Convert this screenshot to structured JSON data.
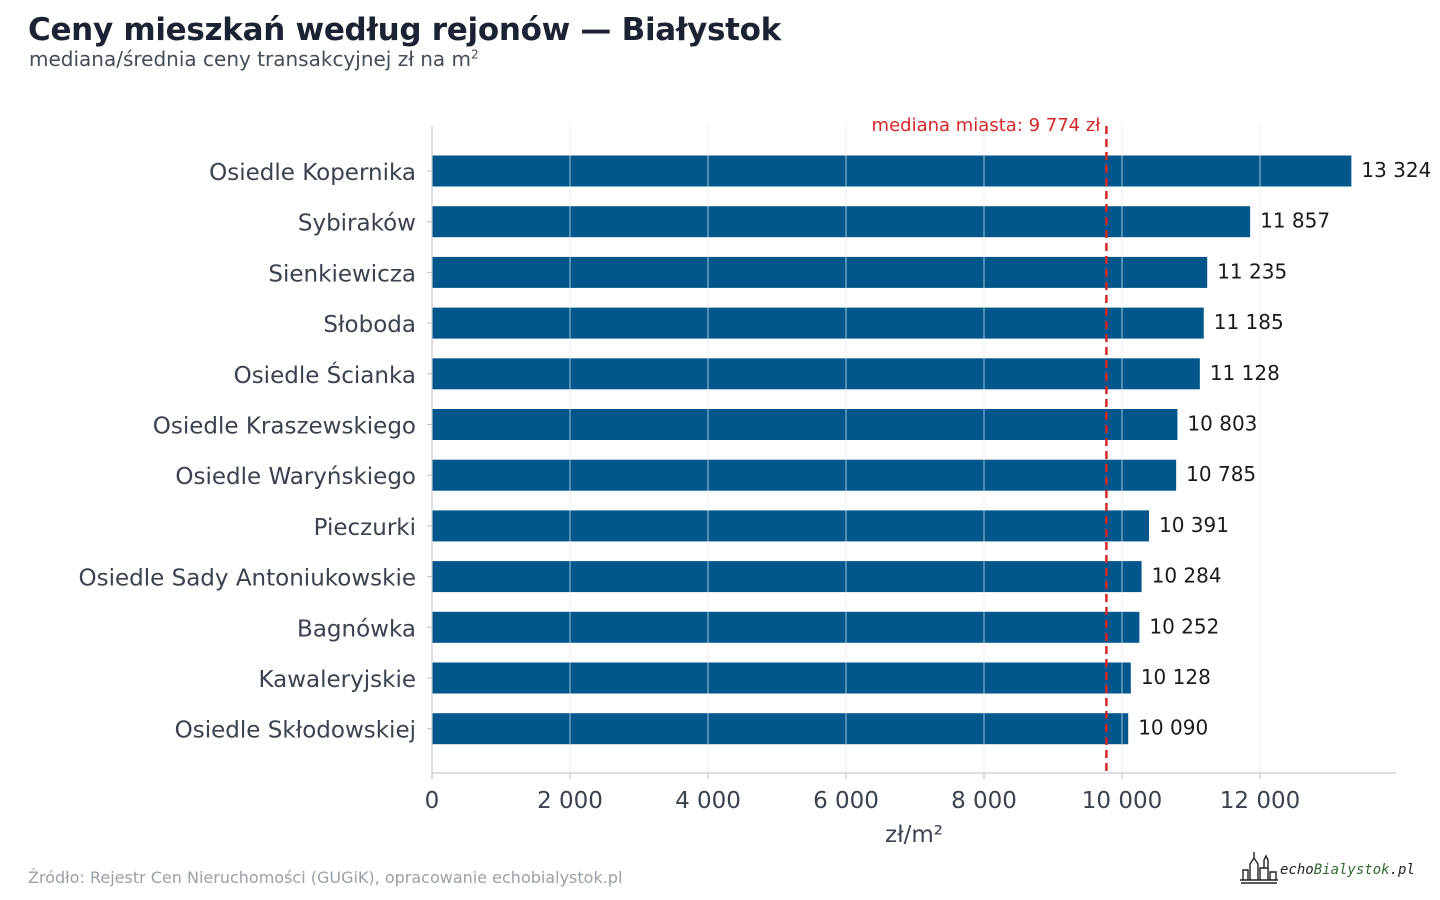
{
  "title": "Ceny mieszkań według rejonów — Białystok",
  "subtitle_text": "mediana/średnia ceny transakcyjnej zł na m",
  "subtitle_sup": "2",
  "source": "Źródło: Rejestr Cen Nieruchomości (GUGiK), opracowanie echobialystok.pl",
  "logo": {
    "prefix": "echo",
    "accent": "Bialystok",
    "suffix": ".pl"
  },
  "chart_data": {
    "type": "bar",
    "orientation": "horizontal",
    "categories": [
      "Osiedle Kopernika",
      "Sybiraków",
      "Sienkiewicza",
      "Słoboda",
      "Osiedle Ścianka",
      "Osiedle Kraszewskiego",
      "Osiedle Waryńskiego",
      "Pieczurki",
      "Osiedle Sady Antoniukowskie",
      "Bagnówka",
      "Kawaleryjskie",
      "Osiedle Skłodowskiej"
    ],
    "values": [
      13324,
      11857,
      11235,
      11185,
      11128,
      10803,
      10785,
      10391,
      10284,
      10252,
      10128,
      10090
    ],
    "value_labels": [
      "13 324",
      "11 857",
      "11 235",
      "11 185",
      "11 128",
      "10 803",
      "10 785",
      "10 391",
      "10 284",
      "10 252",
      "10 128",
      "10 090"
    ],
    "xlabel": "zł/m²",
    "ylabel": "",
    "xlim": [
      0,
      14000
    ],
    "xticks": [
      0,
      2000,
      4000,
      6000,
      8000,
      10000,
      12000
    ],
    "xtick_labels": [
      "0",
      "2 000",
      "4 000",
      "6 000",
      "8 000",
      "10 000",
      "12 000"
    ],
    "reference_line": {
      "value": 9774,
      "label": "mediana miasta: 9 774 zł",
      "color": "#d62728",
      "style": "dashed"
    },
    "bar_color": "#01568c",
    "grid": "vertical",
    "legend": "none"
  }
}
